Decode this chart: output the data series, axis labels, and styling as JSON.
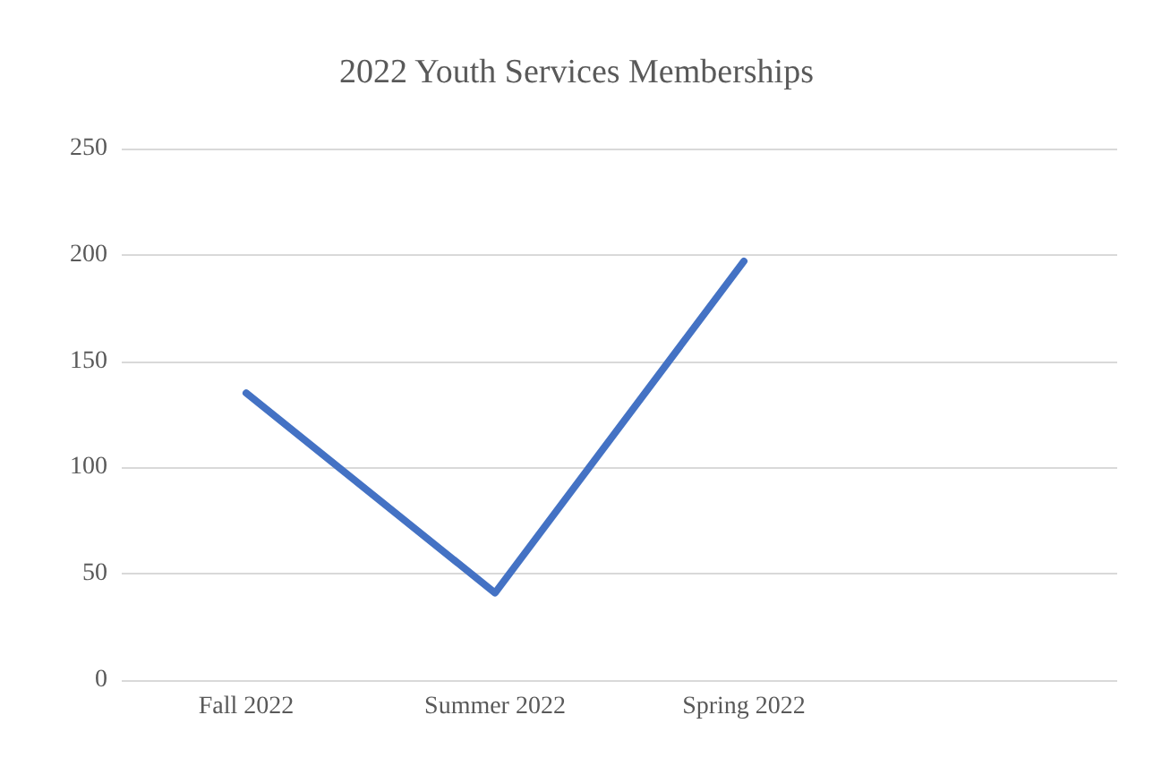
{
  "chart_data": {
    "type": "line",
    "title": "2022 Youth Services Memberships",
    "categories": [
      "Fall 2022",
      "Summer 2022",
      "Spring 2022",
      null
    ],
    "series": [
      {
        "color": "#4472c4",
        "values": [
          135,
          41,
          197,
          null
        ]
      }
    ],
    "ylim": [
      0,
      250
    ],
    "yticks": [
      0,
      50,
      100,
      150,
      200,
      250
    ],
    "grid": "y",
    "marker": "none",
    "line_style": "solid"
  }
}
